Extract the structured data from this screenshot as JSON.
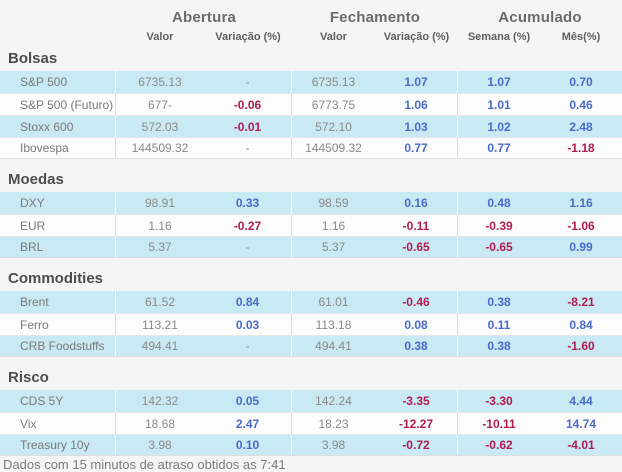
{
  "chart_data": {
    "type": "table",
    "header": {
      "groups": [
        {
          "label": "Abertura",
          "sub": [
            "Valor",
            "Variação (%)"
          ]
        },
        {
          "label": "Fechamento",
          "sub": [
            "Valor",
            "Variação (%)"
          ]
        },
        {
          "label": "Acumulado",
          "sub": [
            "Semana (%)",
            "Mês(%)"
          ]
        }
      ]
    },
    "sections": [
      {
        "title": "Bolsas",
        "rows": [
          {
            "name": "S&P 500",
            "values": [
              "6735.13",
              "-",
              "6735.13",
              "1.07",
              "1.07",
              "0.70"
            ]
          },
          {
            "name": "S&P 500 (Futuro)",
            "values": [
              "677-",
              "-0.06",
              "6773.75",
              "1.06",
              "1.01",
              "0.46"
            ]
          },
          {
            "name": "Stoxx 600",
            "values": [
              "572.03",
              "-0.01",
              "572.10",
              "1.03",
              "1.02",
              "2.48"
            ]
          },
          {
            "name": "Ibovespa",
            "values": [
              "144509.32",
              "-",
              "144509.32",
              "0.77",
              "0.77",
              "-1.18"
            ]
          }
        ]
      },
      {
        "title": "Moedas",
        "rows": [
          {
            "name": "DXY",
            "values": [
              "98.91",
              "0.33",
              "98.59",
              "0.16",
              "0.48",
              "1.16"
            ]
          },
          {
            "name": "EUR",
            "values": [
              "1.16",
              "-0.27",
              "1.16",
              "-0.11",
              "-0.39",
              "-1.06"
            ]
          },
          {
            "name": "BRL",
            "values": [
              "5.37",
              "-",
              "5.37",
              "-0.65",
              "-0.65",
              "0.99"
            ]
          }
        ]
      },
      {
        "title": "Commodities",
        "rows": [
          {
            "name": "Brent",
            "values": [
              "61.52",
              "0.84",
              "61.01",
              "-0.46",
              "0.38",
              "-8.21"
            ]
          },
          {
            "name": "Ferro",
            "values": [
              "113.21",
              "0.03",
              "113.18",
              "0.08",
              "0.11",
              "0.84"
            ]
          },
          {
            "name": "CRB Foodstuffs",
            "values": [
              "494.41",
              "-",
              "494.41",
              "0.38",
              "0.38",
              "-1.60"
            ]
          }
        ]
      },
      {
        "title": "Risco",
        "rows": [
          {
            "name": "CDS 5Y",
            "values": [
              "142.32",
              "0.05",
              "142.24",
              "-3.35",
              "-3.30",
              "4.44"
            ]
          },
          {
            "name": "Vix",
            "values": [
              "18.68",
              "2.47",
              "18.23",
              "-12.27",
              "-10.11",
              "14.74"
            ]
          },
          {
            "name": "Treasury 10y",
            "values": [
              "3.98",
              "0.10",
              "3.98",
              "-0.72",
              "-0.62",
              "-4.01"
            ]
          }
        ]
      }
    ]
  },
  "footer": {
    "text": "Dados com 15 minutos de atraso obtidos as 7:41"
  },
  "colors": {
    "positive": "#4a6bc9",
    "negative": "#b01b52",
    "stripe": "#c9e9f4",
    "row_alt": "#fcfcfc",
    "neutral_value": "#8a8a8a",
    "label_text": "#7a7a7a"
  }
}
